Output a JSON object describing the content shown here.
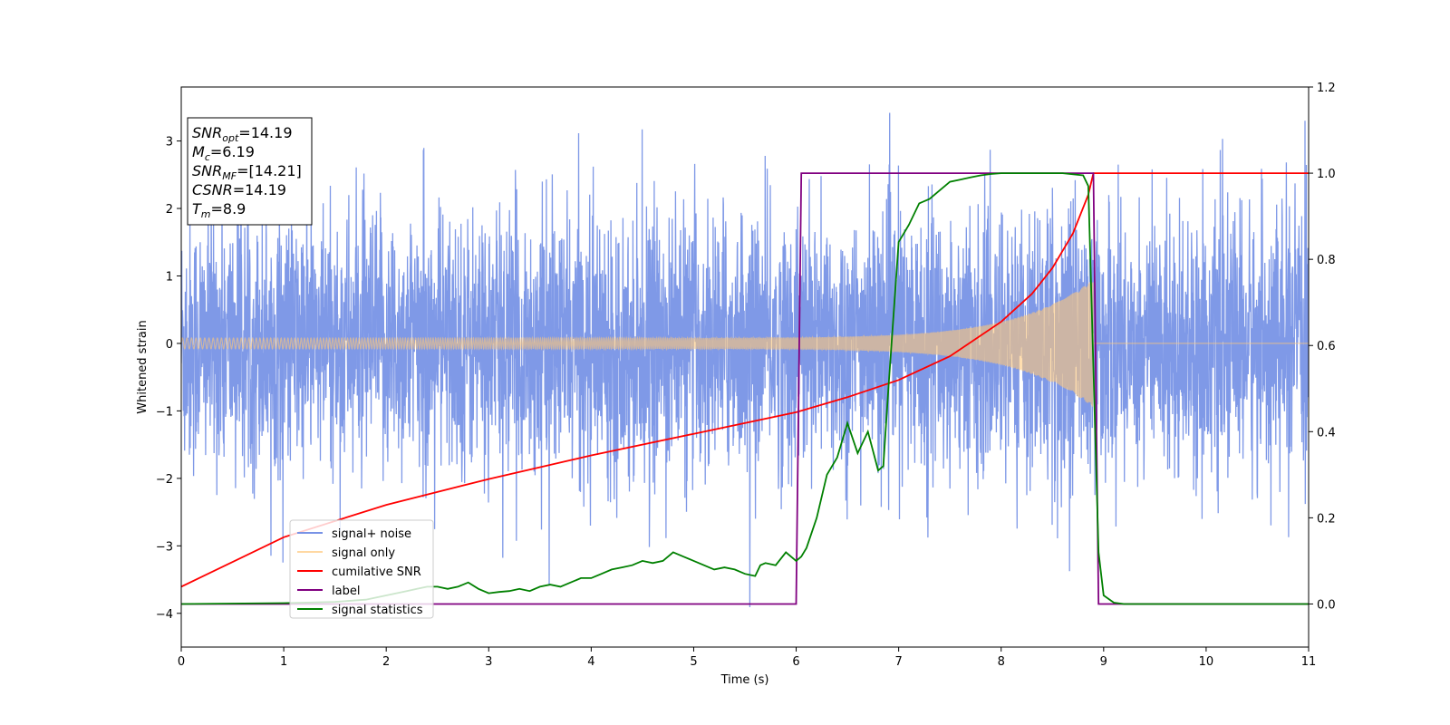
{
  "chart_data": {
    "type": "line",
    "xlabel": "Time (s)",
    "ylabel": "Whitened strain",
    "xlim": [
      0,
      11
    ],
    "ylim_left": [
      -4.5,
      3.8
    ],
    "ylim_right": [
      -0.1,
      1.2
    ],
    "x_ticks": [
      "0",
      "1",
      "2",
      "3",
      "4",
      "5",
      "6",
      "7",
      "8",
      "9",
      "10",
      "11"
    ],
    "y_ticks_left": [
      "3",
      "2",
      "1",
      "0",
      "−1",
      "−2",
      "−3",
      "−4"
    ],
    "y_ticks_right": [
      "1.2",
      "1.0",
      "0.8",
      "0.6",
      "0.4",
      "0.2",
      "0.0"
    ],
    "legend_position": "lower-left",
    "annotations": [
      {
        "base": "SNR",
        "sub": "opt",
        "value": "=14.19"
      },
      {
        "base": "M",
        "sub": "c",
        "value": "=6.19"
      },
      {
        "base": "SNR",
        "sub": "MF",
        "value": "=[14.21]"
      },
      {
        "base": "CSNR",
        "sub": "",
        "value": "=14.19"
      },
      {
        "base": "T",
        "sub": "m",
        "value": "=8.9"
      }
    ],
    "series": [
      {
        "name": "signal+ noise",
        "color": "#7893e6",
        "axis": "left",
        "description_values": {
          "noise_std": 1.0,
          "max_abs": 3.3
        }
      },
      {
        "name": "signal only",
        "color": "#ffc87a",
        "axis": "left",
        "chirp_end_s": 8.9,
        "amplitude_start": 0.08,
        "amplitude_end": 0.95
      },
      {
        "name": "cumilative SNR",
        "color": "#ff0000",
        "axis": "right",
        "x": [
          0,
          1,
          2,
          3,
          4,
          5,
          6,
          6.5,
          7,
          7.5,
          8,
          8.3,
          8.5,
          8.7,
          8.85,
          8.9,
          11
        ],
        "y": [
          0.04,
          0.155,
          0.23,
          0.29,
          0.345,
          0.395,
          0.445,
          0.48,
          0.52,
          0.575,
          0.655,
          0.72,
          0.78,
          0.86,
          0.95,
          1.0,
          1.0
        ]
      },
      {
        "name": "label",
        "color": "#800080",
        "axis": "right",
        "x": [
          0,
          6.0,
          6.05,
          8.9,
          8.95,
          11
        ],
        "y": [
          0,
          0,
          1,
          1,
          0,
          0
        ]
      },
      {
        "name": "signal statistics",
        "color": "#008000",
        "axis": "right",
        "x": [
          0,
          1,
          1.5,
          1.8,
          2.0,
          2.2,
          2.3,
          2.4,
          2.5,
          2.6,
          2.7,
          2.8,
          2.9,
          3.0,
          3.1,
          3.2,
          3.3,
          3.4,
          3.5,
          3.6,
          3.7,
          3.8,
          3.9,
          4.0,
          4.1,
          4.2,
          4.3,
          4.4,
          4.5,
          4.6,
          4.7,
          4.8,
          4.9,
          5.0,
          5.1,
          5.2,
          5.3,
          5.4,
          5.5,
          5.6,
          5.65,
          5.7,
          5.8,
          5.9,
          6.0,
          6.05,
          6.1,
          6.2,
          6.3,
          6.4,
          6.5,
          6.6,
          6.7,
          6.8,
          6.85,
          6.9,
          7.0,
          7.1,
          7.2,
          7.3,
          7.4,
          7.5,
          7.6,
          7.7,
          7.8,
          7.9,
          8.0,
          8.2,
          8.4,
          8.6,
          8.8,
          8.85,
          8.95,
          9.0,
          9.1,
          9.2,
          11
        ],
        "y": [
          0,
          0.002,
          0.005,
          0.01,
          0.02,
          0.03,
          0.035,
          0.04,
          0.04,
          0.035,
          0.04,
          0.05,
          0.035,
          0.025,
          0.028,
          0.03,
          0.035,
          0.03,
          0.04,
          0.045,
          0.04,
          0.05,
          0.06,
          0.06,
          0.07,
          0.08,
          0.085,
          0.09,
          0.1,
          0.095,
          0.1,
          0.12,
          0.11,
          0.1,
          0.09,
          0.08,
          0.085,
          0.08,
          0.07,
          0.065,
          0.09,
          0.095,
          0.09,
          0.12,
          0.1,
          0.11,
          0.13,
          0.2,
          0.3,
          0.34,
          0.42,
          0.35,
          0.4,
          0.31,
          0.32,
          0.5,
          0.84,
          0.88,
          0.93,
          0.94,
          0.96,
          0.98,
          0.985,
          0.99,
          0.995,
          0.998,
          1.0,
          1.0,
          1.0,
          1.0,
          0.995,
          0.97,
          0.12,
          0.02,
          0.003,
          0.0,
          0.0
        ]
      }
    ]
  }
}
